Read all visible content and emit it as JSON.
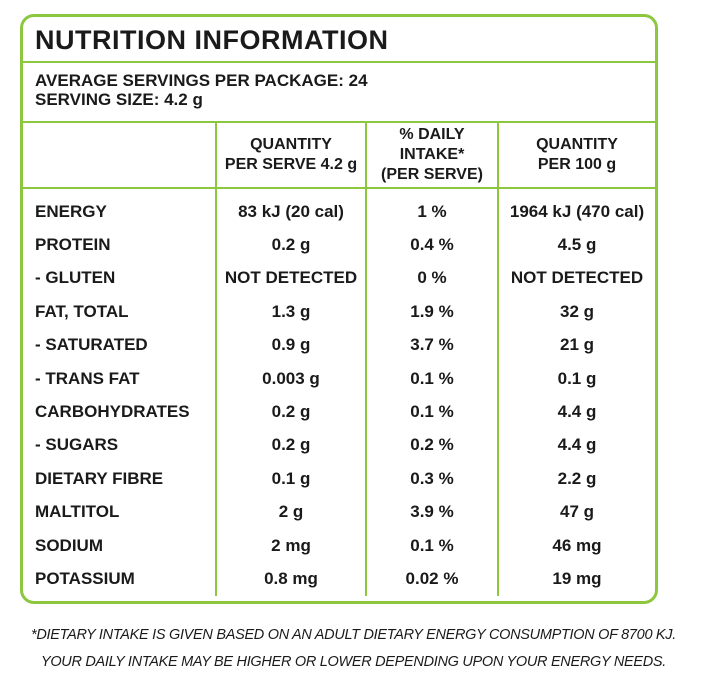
{
  "title": "NUTRITION INFORMATION",
  "servings": [
    "AVERAGE SERVINGS PER PACKAGE: 24",
    "SERVING SIZE: 4.2 g"
  ],
  "table": {
    "headers": [
      [
        "QUANTITY",
        "PER SERVE 4.2 g"
      ],
      [
        "% DAILY INTAKE*",
        "(PER SERVE)"
      ],
      [
        "QUANTITY",
        "PER 100 g"
      ]
    ],
    "rows": [
      [
        "ENERGY",
        "83 kJ (20 cal)",
        "1 %",
        "1964 kJ (470 cal)"
      ],
      [
        "PROTEIN",
        "0.2 g",
        "0.4 %",
        "4.5 g"
      ],
      [
        "- GLUTEN",
        "NOT DETECTED",
        "0 %",
        "NOT DETECTED"
      ],
      [
        "FAT, TOTAL",
        "1.3 g",
        "1.9 %",
        "32 g"
      ],
      [
        "- SATURATED",
        "0.9 g",
        "3.7 %",
        "21 g"
      ],
      [
        "- TRANS FAT",
        "0.003 g",
        "0.1 %",
        "0.1 g"
      ],
      [
        "CARBOHYDRATES",
        "0.2 g",
        "0.1 %",
        "4.4 g"
      ],
      [
        "- SUGARS",
        "0.2 g",
        "0.2 %",
        "4.4 g"
      ],
      [
        "DIETARY FIBRE",
        "0.1 g",
        "0.3 %",
        "2.2 g"
      ],
      [
        "MALTITOL",
        "2 g",
        "3.9 %",
        "47 g"
      ],
      [
        "SODIUM",
        "2 mg",
        "0.1 %",
        "46 mg"
      ],
      [
        "POTASSIUM",
        "0.8 mg",
        "0.02 %",
        "19 mg"
      ]
    ]
  },
  "footnote": [
    "*DIETARY INTAKE IS GIVEN BASED ON AN ADULT DIETARY ENERGY CONSUMPTION OF 8700 KJ.",
    "YOUR DAILY INTAKE MAY BE HIGHER OR LOWER DEPENDING UPON YOUR ENERGY NEEDS."
  ]
}
